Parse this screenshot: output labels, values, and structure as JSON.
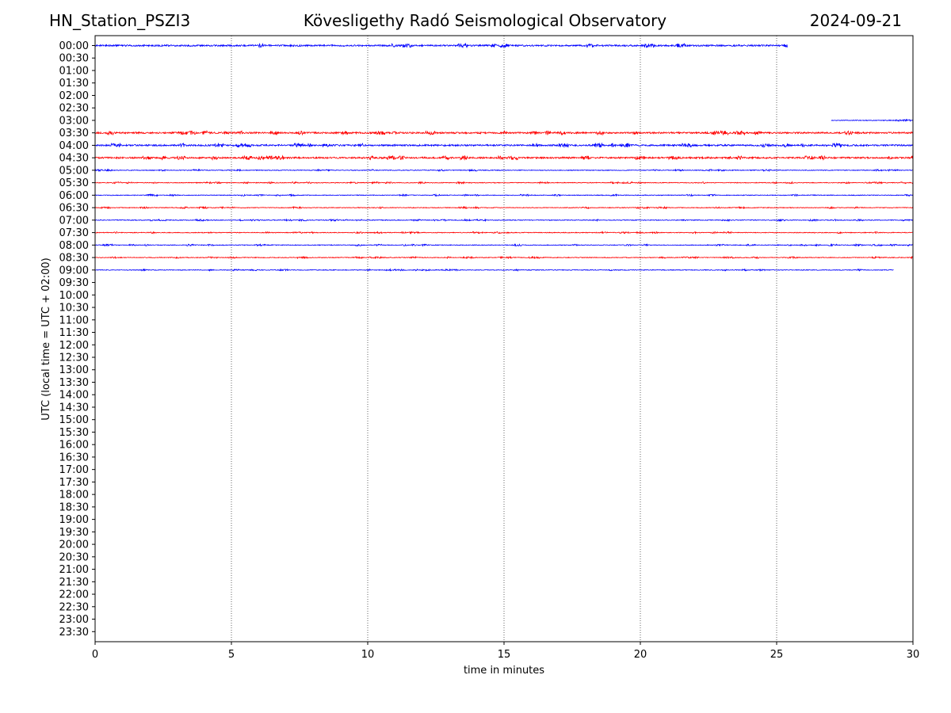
{
  "header": {
    "station": "HN_Station_PSZI3",
    "observatory": "Kövesligethy Radó Seismological Observatory",
    "date": "2024-09-21"
  },
  "colors": {
    "red": "#ff0000",
    "blue": "#0000ff",
    "grid": "#000000"
  },
  "chart_data": {
    "type": "line",
    "title": "",
    "xlabel": "time in minutes",
    "ylabel": "UTC (local time = UTC + 02:00)",
    "xlim": [
      0,
      30
    ],
    "x_ticks": [
      0,
      5,
      10,
      15,
      20,
      25,
      30
    ],
    "grid": "vertical dotted lines at 5, 10, 15, 20, 25",
    "y_ticks": [
      "00:00",
      "00:30",
      "01:00",
      "01:30",
      "02:00",
      "02:30",
      "03:00",
      "03:30",
      "04:00",
      "04:30",
      "05:00",
      "05:30",
      "06:00",
      "06:30",
      "07:00",
      "07:30",
      "08:00",
      "08:30",
      "09:00",
      "09:30",
      "10:00",
      "10:30",
      "11:00",
      "11:30",
      "12:00",
      "12:30",
      "13:00",
      "13:30",
      "14:00",
      "14:30",
      "15:00",
      "15:30",
      "16:00",
      "16:30",
      "17:00",
      "17:30",
      "18:00",
      "18:30",
      "19:00",
      "19:30",
      "20:00",
      "20:30",
      "21:00",
      "21:30",
      "22:00",
      "22:30",
      "23:00",
      "23:30"
    ],
    "series": [
      {
        "row": "00:00",
        "color": "blue",
        "start": 0,
        "end": 25.4,
        "amplitude": "medium"
      },
      {
        "row": "03:00",
        "color": "blue",
        "start": 27.0,
        "end": 30,
        "amplitude": "low"
      },
      {
        "row": "03:30",
        "color": "red",
        "start": 0,
        "end": 30,
        "amplitude": "medium"
      },
      {
        "row": "04:00",
        "color": "blue",
        "start": 0,
        "end": 30,
        "amplitude": "medium"
      },
      {
        "row": "04:30",
        "color": "red",
        "start": 0,
        "end": 30,
        "amplitude": "medium"
      },
      {
        "row": "05:00",
        "color": "blue",
        "start": 0,
        "end": 30,
        "amplitude": "low"
      },
      {
        "row": "05:30",
        "color": "red",
        "start": 0,
        "end": 30,
        "amplitude": "low"
      },
      {
        "row": "06:00",
        "color": "blue",
        "start": 0,
        "end": 30,
        "amplitude": "low"
      },
      {
        "row": "06:30",
        "color": "red",
        "start": 0,
        "end": 30,
        "amplitude": "low"
      },
      {
        "row": "07:00",
        "color": "blue",
        "start": 0,
        "end": 30,
        "amplitude": "low"
      },
      {
        "row": "07:30",
        "color": "red",
        "start": 0,
        "end": 30,
        "amplitude": "low"
      },
      {
        "row": "08:00",
        "color": "blue",
        "start": 0,
        "end": 30,
        "amplitude": "low"
      },
      {
        "row": "08:30",
        "color": "red",
        "start": 0,
        "end": 30,
        "amplitude": "low"
      },
      {
        "row": "09:00",
        "color": "blue",
        "start": 0,
        "end": 29.3,
        "amplitude": "low"
      }
    ]
  }
}
